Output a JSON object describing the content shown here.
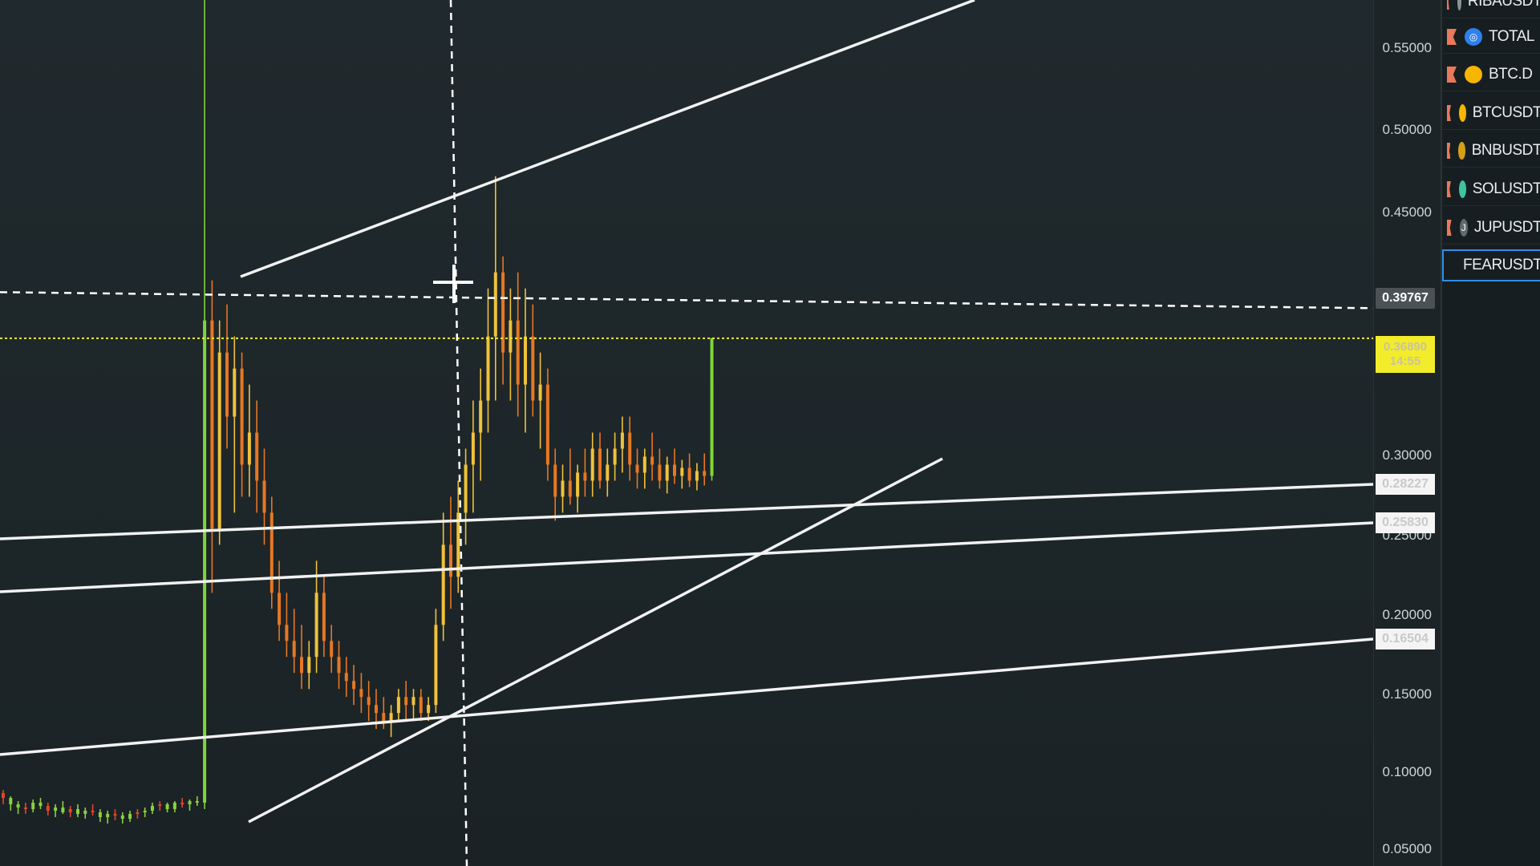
{
  "chart_data": {
    "type": "candlestick",
    "ylim": [
      0.02,
      0.58
    ],
    "price_axis_ticks": [
      "0.55000",
      "0.50000",
      "0.45000",
      "0.30000",
      "0.25000",
      "0.20000",
      "0.15000",
      "0.10000",
      "0.05000"
    ],
    "crosshair_price": "0.39767",
    "last_price": "0.36890",
    "countdown": "14:55",
    "line_price_tags": [
      "0.28227",
      "0.25830",
      "0.16504"
    ],
    "candles": [
      [
        0.085,
        0.087,
        0.078,
        0.082
      ],
      [
        0.082,
        0.083,
        0.074,
        0.078
      ],
      [
        0.078,
        0.08,
        0.072,
        0.076
      ],
      [
        0.076,
        0.079,
        0.072,
        0.075
      ],
      [
        0.075,
        0.081,
        0.073,
        0.079
      ],
      [
        0.079,
        0.082,
        0.075,
        0.077
      ],
      [
        0.077,
        0.079,
        0.071,
        0.074
      ],
      [
        0.074,
        0.078,
        0.07,
        0.076
      ],
      [
        0.076,
        0.08,
        0.072,
        0.073
      ],
      [
        0.073,
        0.077,
        0.07,
        0.075
      ],
      [
        0.075,
        0.078,
        0.07,
        0.072
      ],
      [
        0.072,
        0.076,
        0.069,
        0.074
      ],
      [
        0.074,
        0.078,
        0.071,
        0.073
      ],
      [
        0.073,
        0.075,
        0.067,
        0.07
      ],
      [
        0.07,
        0.074,
        0.066,
        0.072
      ],
      [
        0.072,
        0.075,
        0.068,
        0.071
      ],
      [
        0.071,
        0.073,
        0.066,
        0.069
      ],
      [
        0.069,
        0.074,
        0.067,
        0.072
      ],
      [
        0.072,
        0.075,
        0.069,
        0.073
      ],
      [
        0.073,
        0.076,
        0.07,
        0.074
      ],
      [
        0.074,
        0.079,
        0.072,
        0.077
      ],
      [
        0.077,
        0.08,
        0.074,
        0.078
      ],
      [
        0.078,
        0.079,
        0.073,
        0.075
      ],
      [
        0.075,
        0.08,
        0.073,
        0.079
      ],
      [
        0.079,
        0.082,
        0.076,
        0.078
      ],
      [
        0.078,
        0.081,
        0.074,
        0.08
      ],
      [
        0.08,
        0.083,
        0.077,
        0.079
      ],
      [
        0.079,
        0.58,
        0.075,
        0.38
      ],
      [
        0.38,
        0.405,
        0.21,
        0.25
      ],
      [
        0.25,
        0.38,
        0.24,
        0.36
      ],
      [
        0.36,
        0.39,
        0.3,
        0.32
      ],
      [
        0.32,
        0.37,
        0.26,
        0.35
      ],
      [
        0.35,
        0.36,
        0.27,
        0.29
      ],
      [
        0.29,
        0.34,
        0.27,
        0.31
      ],
      [
        0.31,
        0.33,
        0.26,
        0.28
      ],
      [
        0.28,
        0.3,
        0.24,
        0.26
      ],
      [
        0.26,
        0.27,
        0.2,
        0.21
      ],
      [
        0.21,
        0.23,
        0.18,
        0.19
      ],
      [
        0.19,
        0.21,
        0.17,
        0.18
      ],
      [
        0.18,
        0.2,
        0.16,
        0.17
      ],
      [
        0.17,
        0.19,
        0.15,
        0.16
      ],
      [
        0.16,
        0.18,
        0.15,
        0.17
      ],
      [
        0.17,
        0.23,
        0.16,
        0.21
      ],
      [
        0.21,
        0.22,
        0.17,
        0.18
      ],
      [
        0.18,
        0.19,
        0.16,
        0.17
      ],
      [
        0.17,
        0.18,
        0.15,
        0.16
      ],
      [
        0.16,
        0.17,
        0.145,
        0.155
      ],
      [
        0.155,
        0.165,
        0.14,
        0.15
      ],
      [
        0.15,
        0.16,
        0.135,
        0.145
      ],
      [
        0.145,
        0.155,
        0.13,
        0.14
      ],
      [
        0.14,
        0.15,
        0.125,
        0.135
      ],
      [
        0.135,
        0.145,
        0.125,
        0.13
      ],
      [
        0.13,
        0.14,
        0.12,
        0.135
      ],
      [
        0.135,
        0.15,
        0.13,
        0.145
      ],
      [
        0.145,
        0.155,
        0.13,
        0.14
      ],
      [
        0.14,
        0.15,
        0.13,
        0.145
      ],
      [
        0.145,
        0.15,
        0.13,
        0.135
      ],
      [
        0.135,
        0.145,
        0.13,
        0.14
      ],
      [
        0.14,
        0.2,
        0.135,
        0.19
      ],
      [
        0.19,
        0.26,
        0.18,
        0.24
      ],
      [
        0.24,
        0.27,
        0.2,
        0.22
      ],
      [
        0.22,
        0.28,
        0.21,
        0.26
      ],
      [
        0.26,
        0.3,
        0.24,
        0.29
      ],
      [
        0.29,
        0.33,
        0.26,
        0.31
      ],
      [
        0.31,
        0.35,
        0.28,
        0.33
      ],
      [
        0.33,
        0.4,
        0.31,
        0.37
      ],
      [
        0.37,
        0.47,
        0.33,
        0.41
      ],
      [
        0.41,
        0.42,
        0.34,
        0.36
      ],
      [
        0.36,
        0.4,
        0.33,
        0.38
      ],
      [
        0.38,
        0.41,
        0.32,
        0.34
      ],
      [
        0.34,
        0.4,
        0.31,
        0.37
      ],
      [
        0.37,
        0.39,
        0.32,
        0.33
      ],
      [
        0.33,
        0.36,
        0.3,
        0.34
      ],
      [
        0.34,
        0.35,
        0.28,
        0.29
      ],
      [
        0.29,
        0.3,
        0.255,
        0.27
      ],
      [
        0.27,
        0.29,
        0.26,
        0.28
      ],
      [
        0.28,
        0.3,
        0.265,
        0.27
      ],
      [
        0.27,
        0.29,
        0.26,
        0.285
      ],
      [
        0.285,
        0.3,
        0.27,
        0.28
      ],
      [
        0.28,
        0.31,
        0.27,
        0.3
      ],
      [
        0.3,
        0.31,
        0.275,
        0.28
      ],
      [
        0.28,
        0.3,
        0.27,
        0.29
      ],
      [
        0.29,
        0.31,
        0.28,
        0.3
      ],
      [
        0.3,
        0.32,
        0.285,
        0.31
      ],
      [
        0.31,
        0.32,
        0.28,
        0.29
      ],
      [
        0.29,
        0.3,
        0.275,
        0.285
      ],
      [
        0.285,
        0.3,
        0.275,
        0.295
      ],
      [
        0.295,
        0.31,
        0.28,
        0.29
      ],
      [
        0.29,
        0.3,
        0.275,
        0.28
      ],
      [
        0.28,
        0.295,
        0.272,
        0.29
      ],
      [
        0.29,
        0.3,
        0.278,
        0.283
      ],
      [
        0.283,
        0.293,
        0.275,
        0.288
      ],
      [
        0.288,
        0.297,
        0.276,
        0.28
      ],
      [
        0.28,
        0.291,
        0.274,
        0.286
      ],
      [
        0.286,
        0.297,
        0.277,
        0.283
      ],
      [
        0.283,
        0.369,
        0.28,
        0.369
      ]
    ]
  },
  "drawings": {
    "line_color": "#f2f2f2",
    "crosshair_color": "#ffffff",
    "last_price_color": "#f3ec2a",
    "up_color": "#f0c23a",
    "down_color": "#e87722",
    "spike_color": "#7ed63a"
  },
  "watchlist": {
    "items": [
      {
        "label": "RIBAUSDT",
        "icon": "ring-icon",
        "color": "#8a9597"
      },
      {
        "label": "TOTAL",
        "icon": "total-icon",
        "color": "#2f80ed"
      },
      {
        "label": "BTC.D",
        "icon": "btc-icon",
        "color": "#f7b500"
      },
      {
        "label": "BTCUSDT",
        "icon": "btc-icon",
        "color": "#f7b500"
      },
      {
        "label": "BNBUSDT",
        "icon": "bnb-icon",
        "color": "#d4a017"
      },
      {
        "label": "SOLUSDT",
        "icon": "sol-icon",
        "color": "#3ec2a0"
      },
      {
        "label": "JUPUSDT",
        "icon": "jup-icon",
        "color": "#5f6a6d"
      },
      {
        "label": "FEARUSDT",
        "icon": "fear-icon",
        "color": "#3ec2a0"
      }
    ]
  }
}
